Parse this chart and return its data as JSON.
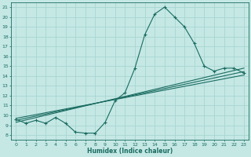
{
  "xlabel": "Humidex (Indice chaleur)",
  "ylabel": "",
  "bg_color": "#c5e8e5",
  "grid_color": "#a8d5d0",
  "line_color": "#1a6b60",
  "xlim": [
    -0.5,
    23.5
  ],
  "ylim": [
    7.5,
    21.5
  ],
  "xticks": [
    0,
    1,
    2,
    3,
    4,
    5,
    6,
    7,
    8,
    9,
    10,
    11,
    12,
    13,
    14,
    15,
    16,
    17,
    18,
    19,
    20,
    21,
    22,
    23
  ],
  "yticks": [
    8,
    9,
    10,
    11,
    12,
    13,
    14,
    15,
    16,
    17,
    18,
    19,
    20,
    21
  ],
  "curve_x": [
    0,
    1,
    2,
    3,
    4,
    5,
    6,
    7,
    8,
    9,
    10,
    11,
    12,
    13,
    14,
    15,
    16,
    17,
    18,
    19,
    20,
    21,
    22,
    23
  ],
  "curve_y": [
    9.6,
    9.2,
    9.5,
    9.2,
    9.8,
    9.2,
    8.3,
    8.2,
    8.2,
    9.3,
    11.5,
    12.3,
    14.8,
    18.2,
    20.3,
    21.0,
    20.0,
    19.0,
    17.3,
    15.0,
    14.5,
    14.8,
    14.8,
    14.3
  ],
  "line1_x": [
    0,
    23
  ],
  "line1_y": [
    9.7,
    14.1
  ],
  "line2_x": [
    0,
    23
  ],
  "line2_y": [
    9.5,
    14.45
  ],
  "line3_x": [
    0,
    23
  ],
  "line3_y": [
    9.3,
    14.8
  ]
}
